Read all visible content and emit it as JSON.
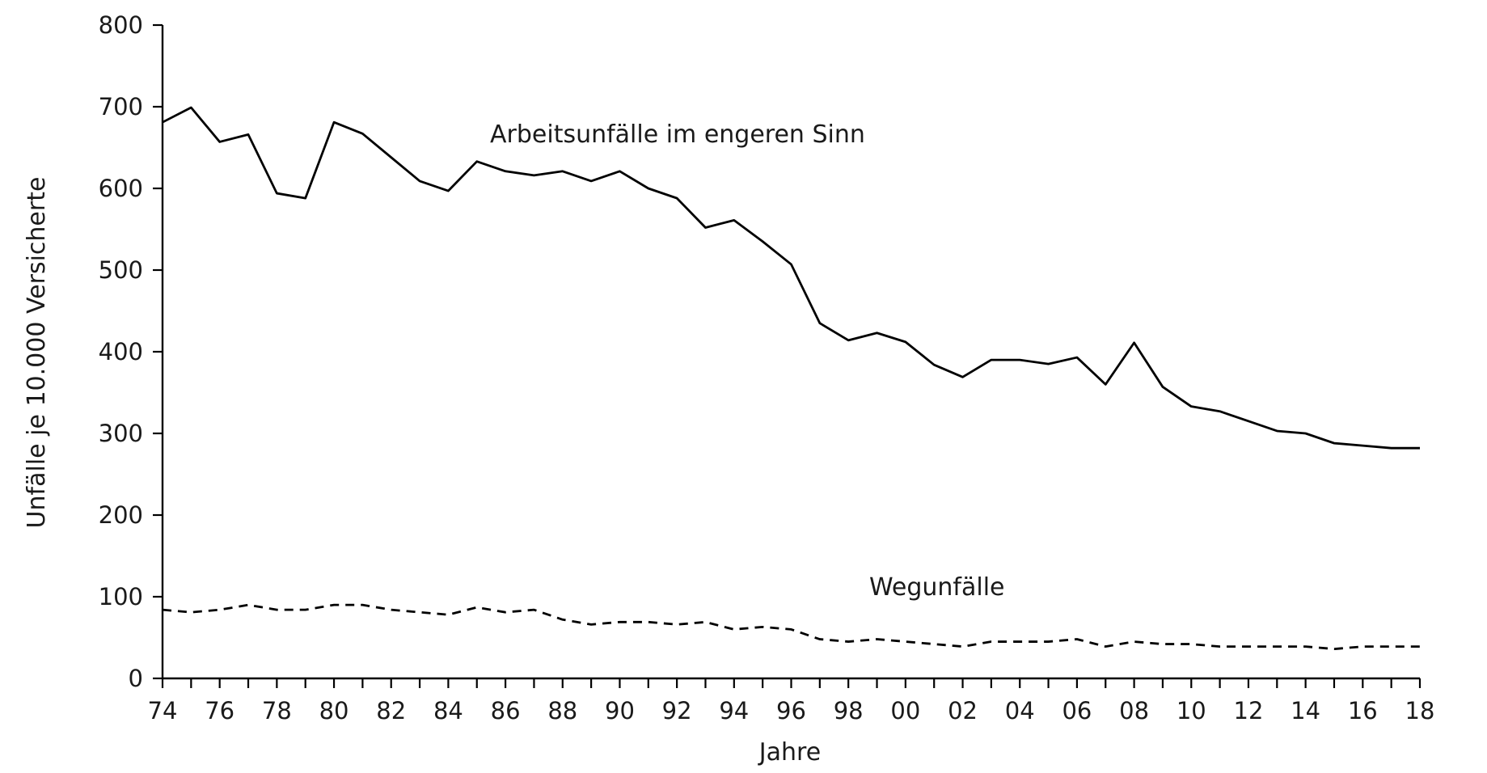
{
  "chart_data": {
    "type": "line",
    "title": "",
    "xlabel": "Jahre",
    "ylabel": "Unfälle je 10.000 Versicherte",
    "ylim": [
      0,
      800
    ],
    "y_ticks": [
      0,
      100,
      200,
      300,
      400,
      500,
      600,
      700,
      800
    ],
    "x_range": [
      1974,
      2018
    ],
    "x_ticks": [
      1974,
      1976,
      1978,
      1980,
      1982,
      1984,
      1986,
      1988,
      1990,
      1992,
      1994,
      1996,
      1998,
      2000,
      2002,
      2004,
      2006,
      2008,
      2010,
      2012,
      2014,
      2016,
      2018
    ],
    "x_tick_labels": [
      "74",
      "76",
      "78",
      "80",
      "82",
      "84",
      "86",
      "88",
      "90",
      "92",
      "94",
      "96",
      "98",
      "00",
      "02",
      "04",
      "06",
      "08",
      "10",
      "12",
      "14",
      "16",
      "18"
    ],
    "grid": false,
    "x": [
      1974,
      1975,
      1976,
      1977,
      1978,
      1979,
      1980,
      1981,
      1982,
      1983,
      1984,
      1985,
      1986,
      1987,
      1988,
      1989,
      1990,
      1991,
      1992,
      1993,
      1994,
      1995,
      1996,
      1997,
      1998,
      1999,
      2000,
      2001,
      2002,
      2003,
      2004,
      2005,
      2006,
      2007,
      2008,
      2009,
      2010,
      2011,
      2012,
      2013,
      2014,
      2015,
      2016,
      2017,
      2018
    ],
    "series": [
      {
        "name": "Arbeitsunfälle im engeren Sinn",
        "style": "solid",
        "color": "#000000",
        "values": [
          681,
          699,
          657,
          666,
          594,
          588,
          681,
          667,
          638,
          609,
          597,
          633,
          621,
          616,
          621,
          609,
          621,
          600,
          588,
          552,
          561,
          535,
          507,
          435,
          414,
          423,
          412,
          384,
          369,
          390,
          390,
          385,
          393,
          360,
          411,
          357,
          333,
          327,
          315,
          303,
          300,
          288,
          285,
          282,
          282
        ]
      },
      {
        "name": "Wegunfälle",
        "style": "dashed",
        "color": "#000000",
        "values": [
          84,
          81,
          84,
          90,
          84,
          84,
          90,
          90,
          84,
          81,
          78,
          87,
          81,
          84,
          72,
          66,
          69,
          69,
          66,
          69,
          60,
          63,
          60,
          48,
          45,
          48,
          45,
          42,
          39,
          45,
          45,
          45,
          48,
          39,
          45,
          42,
          42,
          39,
          39,
          39,
          39,
          36,
          39,
          39,
          39
        ]
      }
    ]
  }
}
